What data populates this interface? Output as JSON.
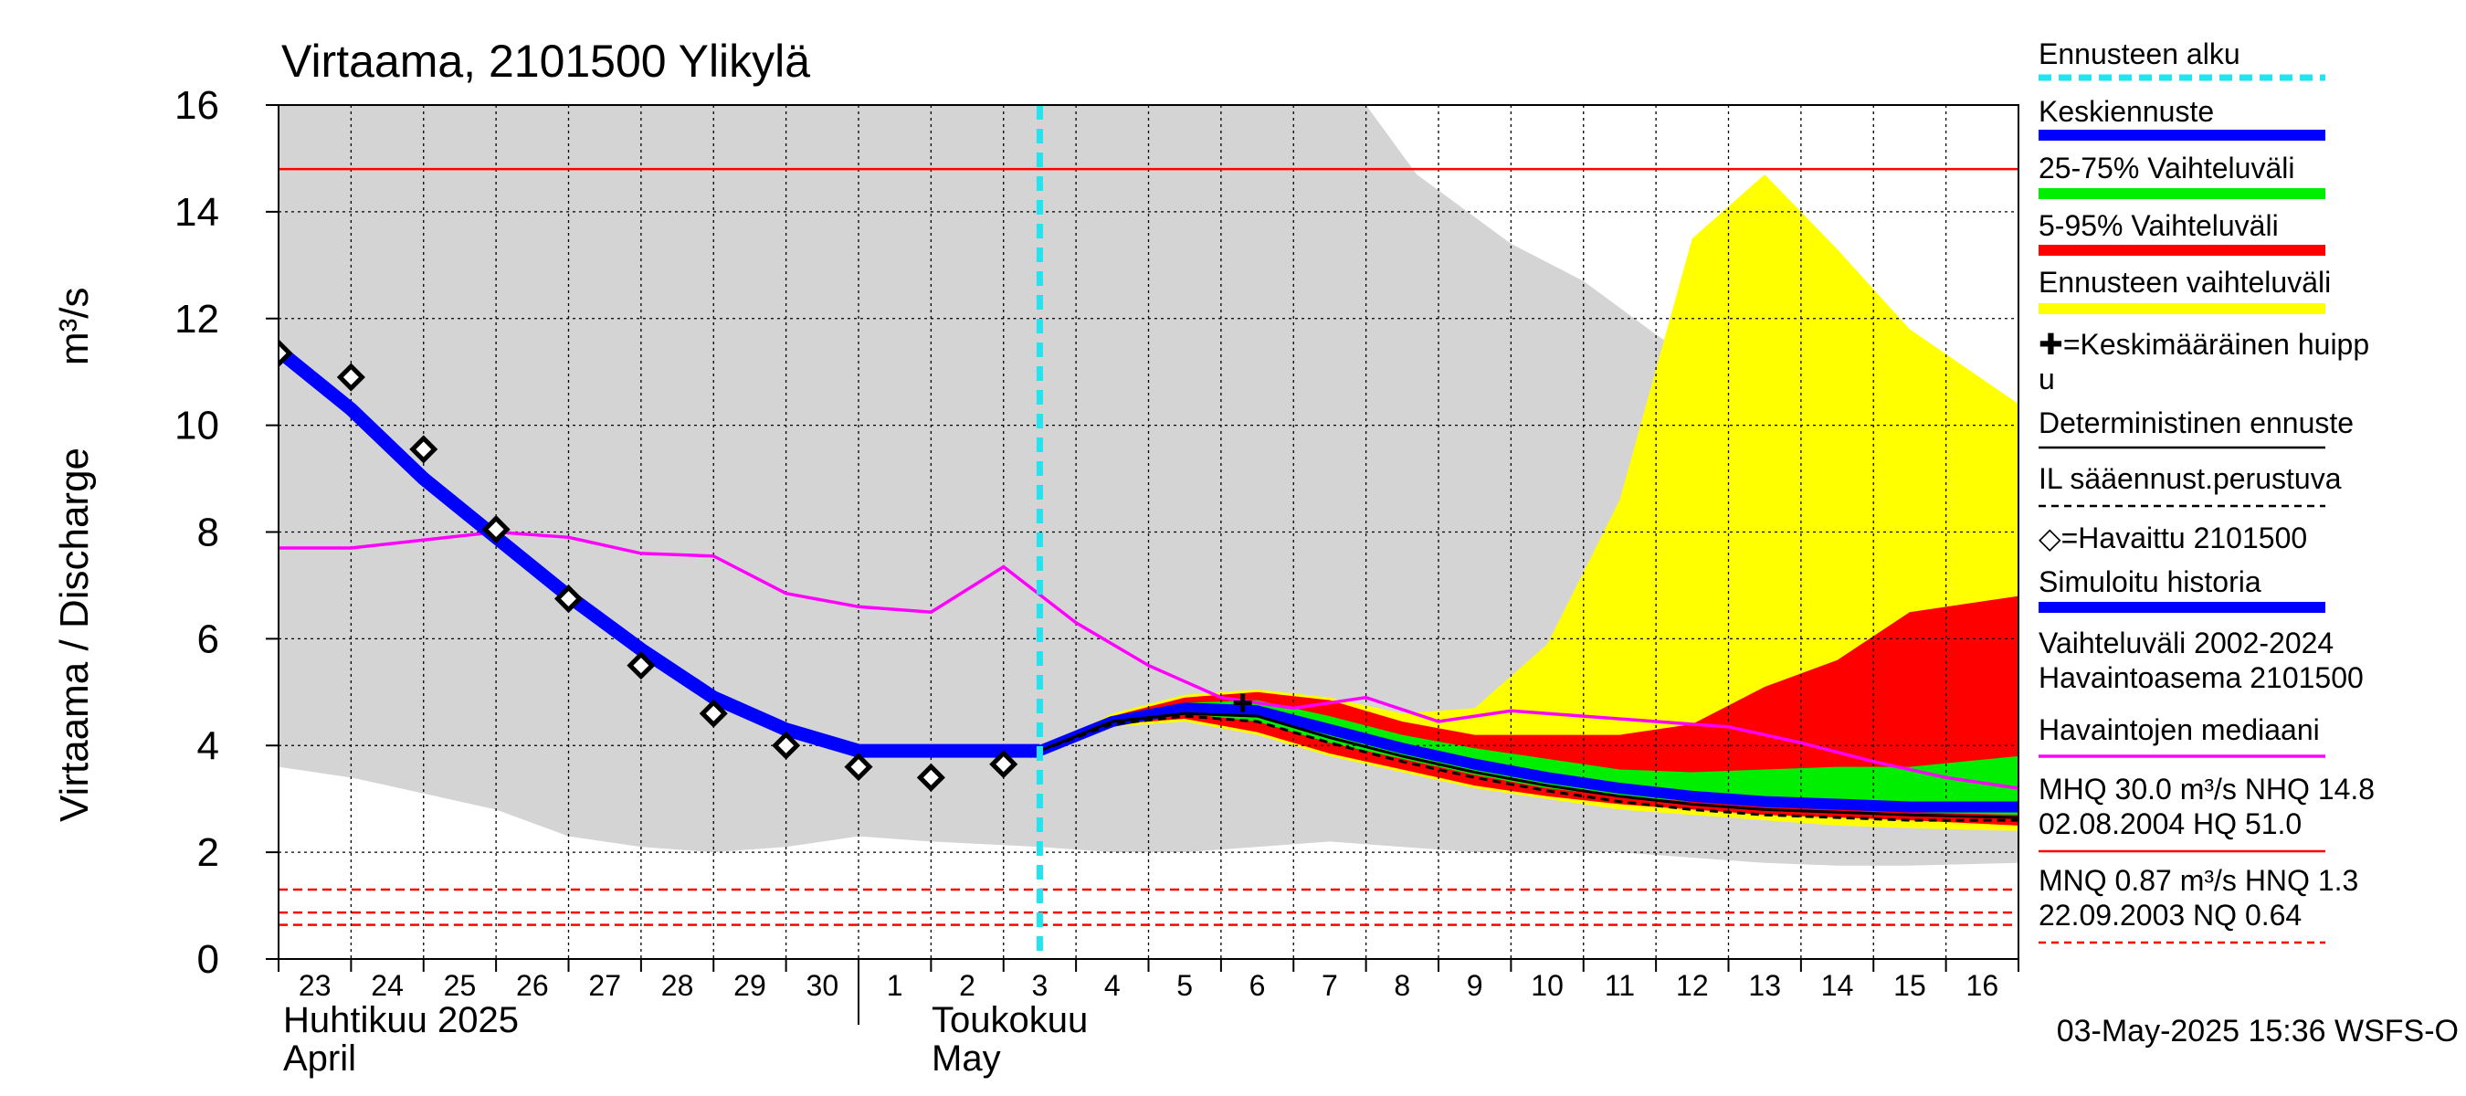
{
  "chart_data": {
    "type": "area",
    "title": "Virtaama, 2101500 Ylikylä",
    "ylabel": "Virtaama / Discharge",
    "yunit": "m³/s",
    "ylim": [
      0,
      16
    ],
    "yticks": [
      0,
      2,
      4,
      6,
      8,
      10,
      12,
      14,
      16
    ],
    "xlim": [
      -0.5,
      23.5
    ],
    "day_labels": [
      "23",
      "24",
      "25",
      "26",
      "27",
      "28",
      "29",
      "30",
      "1",
      "2",
      "3",
      "4",
      "5",
      "6",
      "7",
      "8",
      "9",
      "10",
      "11",
      "12",
      "13",
      "14",
      "15",
      "16"
    ],
    "month_labels": [
      {
        "fi": "Huhtikuu  2025",
        "en": "April"
      },
      {
        "fi": "Toukokuu",
        "en": "May"
      }
    ],
    "forecast_start_x": 10,
    "hq_line": 14.8,
    "low_lines": [
      1.3,
      0.87,
      0.64
    ],
    "colors": {
      "history_range": "#d4d4d4",
      "forecast_range": "#ffff00",
      "range_5_95": "#ff0000",
      "range_25_75": "#00ee00",
      "mean_forecast": "#0000ff",
      "median": "#ff00ff",
      "hq": "#ff0000",
      "forecast_start": "#22e3ee"
    },
    "series": {
      "history_range_upper": [
        [
          -0.5,
          16
        ],
        [
          4.5,
          16
        ],
        [
          5.5,
          16.3
        ],
        [
          6.5,
          16.1
        ],
        [
          8.5,
          16.2
        ],
        [
          10,
          16.3
        ],
        [
          12,
          16.2
        ],
        [
          14.5,
          16
        ],
        [
          15.2,
          14.7
        ],
        [
          16.5,
          13.4
        ],
        [
          17.5,
          12.7
        ],
        [
          18.5,
          11.7
        ],
        [
          19.5,
          10.8
        ],
        [
          20.5,
          9.8
        ],
        [
          21.5,
          8.9
        ],
        [
          22.5,
          8.4
        ],
        [
          23.5,
          7.6
        ]
      ],
      "history_range_lower": [
        [
          -0.5,
          3.6
        ],
        [
          0.5,
          3.4
        ],
        [
          1.5,
          3.1
        ],
        [
          2.5,
          2.8
        ],
        [
          3.5,
          2.3
        ],
        [
          4.5,
          2.1
        ],
        [
          5.5,
          2.0
        ],
        [
          6.5,
          2.1
        ],
        [
          7.5,
          2.3
        ],
        [
          8.5,
          2.2
        ],
        [
          10,
          2.1
        ],
        [
          11,
          2.0
        ],
        [
          12,
          2.0
        ],
        [
          13,
          2.1
        ],
        [
          14,
          2.2
        ],
        [
          15,
          2.1
        ],
        [
          16,
          2.0
        ],
        [
          17,
          2.0
        ],
        [
          18,
          2.0
        ],
        [
          19,
          1.9
        ],
        [
          20,
          1.8
        ],
        [
          21,
          1.75
        ],
        [
          22,
          1.75
        ],
        [
          23.5,
          1.8
        ]
      ],
      "forecast_range_upper": [
        [
          10,
          3.9
        ],
        [
          11,
          4.6
        ],
        [
          12,
          4.95
        ],
        [
          13,
          5.05
        ],
        [
          14,
          4.9
        ],
        [
          15,
          4.6
        ],
        [
          16,
          4.7
        ],
        [
          17,
          5.9
        ],
        [
          18,
          8.6
        ],
        [
          19,
          13.5
        ],
        [
          20,
          14.7
        ],
        [
          21,
          13.3
        ],
        [
          22,
          11.8
        ],
        [
          23.5,
          10.4
        ]
      ],
      "forecast_range_lower": [
        [
          10,
          3.9
        ],
        [
          11,
          4.35
        ],
        [
          12,
          4.45
        ],
        [
          13,
          4.2
        ],
        [
          14,
          3.8
        ],
        [
          15,
          3.5
        ],
        [
          16,
          3.2
        ],
        [
          17,
          3.0
        ],
        [
          18,
          2.8
        ],
        [
          19,
          2.7
        ],
        [
          20,
          2.6
        ],
        [
          21,
          2.5
        ],
        [
          22,
          2.45
        ],
        [
          23.5,
          2.4
        ]
      ],
      "p95": [
        [
          10,
          3.9
        ],
        [
          11,
          4.55
        ],
        [
          12,
          4.9
        ],
        [
          13,
          5.0
        ],
        [
          14,
          4.85
        ],
        [
          15,
          4.45
        ],
        [
          16,
          4.2
        ],
        [
          17,
          4.2
        ],
        [
          18,
          4.2
        ],
        [
          19,
          4.4
        ],
        [
          20,
          5.1
        ],
        [
          21,
          5.6
        ],
        [
          22,
          6.5
        ],
        [
          23.5,
          6.8
        ]
      ],
      "p5": [
        [
          10,
          3.9
        ],
        [
          11,
          4.4
        ],
        [
          12,
          4.5
        ],
        [
          13,
          4.25
        ],
        [
          14,
          3.85
        ],
        [
          15,
          3.55
        ],
        [
          16,
          3.25
        ],
        [
          17,
          3.05
        ],
        [
          18,
          2.9
        ],
        [
          19,
          2.8
        ],
        [
          20,
          2.7
        ],
        [
          21,
          2.65
        ],
        [
          22,
          2.6
        ],
        [
          23.5,
          2.5
        ]
      ],
      "p75": [
        [
          10,
          3.9
        ],
        [
          11,
          4.5
        ],
        [
          12,
          4.8
        ],
        [
          13,
          4.85
        ],
        [
          14,
          4.55
        ],
        [
          15,
          4.2
        ],
        [
          16,
          3.95
        ],
        [
          17,
          3.75
        ],
        [
          18,
          3.55
        ],
        [
          19,
          3.5
        ],
        [
          20,
          3.55
        ],
        [
          21,
          3.6
        ],
        [
          22,
          3.6
        ],
        [
          23.5,
          3.8
        ]
      ],
      "p25": [
        [
          10,
          3.9
        ],
        [
          11,
          4.42
        ],
        [
          12,
          4.6
        ],
        [
          13,
          4.45
        ],
        [
          14,
          4.05
        ],
        [
          15,
          3.75
        ],
        [
          16,
          3.45
        ],
        [
          17,
          3.2
        ],
        [
          18,
          3.05
        ],
        [
          19,
          2.95
        ],
        [
          20,
          2.85
        ],
        [
          21,
          2.8
        ],
        [
          22,
          2.75
        ],
        [
          23.5,
          2.7
        ]
      ],
      "mean_forecast": [
        [
          10,
          3.9
        ],
        [
          11,
          4.45
        ],
        [
          12,
          4.7
        ],
        [
          13,
          4.65
        ],
        [
          14,
          4.3
        ],
        [
          15,
          3.95
        ],
        [
          16,
          3.65
        ],
        [
          17,
          3.4
        ],
        [
          18,
          3.2
        ],
        [
          19,
          3.05
        ],
        [
          20,
          2.95
        ],
        [
          21,
          2.9
        ],
        [
          22,
          2.85
        ],
        [
          23.5,
          2.85
        ]
      ],
      "deterministic": [
        [
          10,
          3.9
        ],
        [
          11,
          4.45
        ],
        [
          12,
          4.6
        ],
        [
          13,
          4.55
        ],
        [
          14,
          4.15
        ],
        [
          15,
          3.8
        ],
        [
          16,
          3.5
        ],
        [
          17,
          3.25
        ],
        [
          18,
          3.05
        ],
        [
          19,
          2.9
        ],
        [
          20,
          2.8
        ],
        [
          21,
          2.75
        ],
        [
          22,
          2.7
        ],
        [
          23.5,
          2.65
        ]
      ],
      "il_forecast": [
        [
          10,
          3.9
        ],
        [
          11,
          4.4
        ],
        [
          12,
          4.55
        ],
        [
          13,
          4.45
        ],
        [
          14,
          4.05
        ],
        [
          15,
          3.7
        ],
        [
          16,
          3.4
        ],
        [
          17,
          3.15
        ],
        [
          18,
          2.95
        ],
        [
          19,
          2.8
        ],
        [
          20,
          2.7
        ],
        [
          21,
          2.65
        ],
        [
          22,
          2.6
        ],
        [
          23.5,
          2.6
        ]
      ],
      "simulated_history": [
        [
          -0.5,
          11.4
        ],
        [
          0.5,
          10.3
        ],
        [
          1.5,
          9.0
        ],
        [
          2.5,
          7.9
        ],
        [
          3.5,
          6.8
        ],
        [
          4.5,
          5.8
        ],
        [
          5.5,
          4.9
        ],
        [
          6.5,
          4.3
        ],
        [
          7.5,
          3.9
        ],
        [
          8.5,
          3.9
        ],
        [
          9.5,
          3.9
        ],
        [
          10,
          3.9
        ]
      ],
      "median": [
        [
          -0.5,
          7.7
        ],
        [
          0.5,
          7.7
        ],
        [
          1.5,
          7.85
        ],
        [
          2.5,
          8.0
        ],
        [
          3.5,
          7.9
        ],
        [
          4.5,
          7.6
        ],
        [
          5.5,
          7.55
        ],
        [
          6.5,
          6.85
        ],
        [
          7.5,
          6.6
        ],
        [
          8.5,
          6.5
        ],
        [
          9.5,
          7.35
        ],
        [
          10.5,
          6.3
        ],
        [
          11.5,
          5.5
        ],
        [
          12.5,
          4.9
        ],
        [
          13.5,
          4.7
        ],
        [
          14.5,
          4.9
        ],
        [
          15.5,
          4.45
        ],
        [
          16.5,
          4.65
        ],
        [
          17.5,
          4.55
        ],
        [
          18.5,
          4.45
        ],
        [
          19.5,
          4.35
        ],
        [
          20.5,
          4.05
        ],
        [
          21.5,
          3.7
        ],
        [
          22.5,
          3.4
        ],
        [
          23.5,
          3.2
        ]
      ],
      "observed": [
        [
          -0.5,
          11.35
        ],
        [
          0.5,
          10.9
        ],
        [
          1.5,
          9.55
        ],
        [
          2.5,
          8.05
        ],
        [
          3.5,
          6.75
        ],
        [
          4.5,
          5.5
        ],
        [
          5.5,
          4.6
        ],
        [
          6.5,
          4.0
        ],
        [
          7.5,
          3.6
        ],
        [
          8.5,
          3.4
        ],
        [
          9.5,
          3.65
        ]
      ],
      "mean_peak": [
        [
          12.8,
          4.8
        ]
      ]
    },
    "legend": [
      {
        "label": "Ennusteen alku",
        "style": "dash-cyan"
      },
      {
        "label": "Keskiennuste",
        "style": "blue"
      },
      {
        "label": "25-75% Vaihteluväli",
        "style": "green"
      },
      {
        "label": "5-95% Vaihteluväli",
        "style": "red"
      },
      {
        "label": "Ennusteen vaihteluväli",
        "style": "yellow"
      },
      {
        "label": "✚=Keskimääräinen huipp",
        "label2": "u",
        "style": "none"
      },
      {
        "label": "Deterministinen ennuste",
        "style": "black"
      },
      {
        "label": "IL sääennust.perustuva",
        "style": "black-dash"
      },
      {
        "label": "◇=Havaittu 2101500",
        "style": "none"
      },
      {
        "label": "Simuloitu historia",
        "style": "blue"
      },
      {
        "label": "Vaihteluväli 2002-2024",
        "label2": " Havaintoasema 2101500",
        "style": "gray"
      },
      {
        "label": "Havaintojen mediaani",
        "style": "magenta"
      },
      {
        "label": "MHQ 30.0 m³/s NHQ 14.8",
        "label2": "02.08.2004 HQ 51.0",
        "style": "red-thin"
      },
      {
        "label": "MNQ 0.87 m³/s HNQ  1.3",
        "label2": "22.09.2003 NQ 0.64",
        "style": "red-dash"
      }
    ],
    "timestamp": "03-May-2025 15:36 WSFS-O"
  }
}
